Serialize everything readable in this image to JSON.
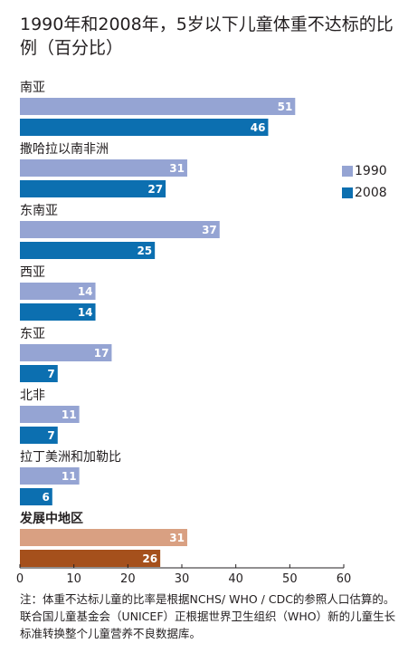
{
  "chart_data": {
    "type": "bar",
    "orientation": "horizontal",
    "title": "1990年和2008年，5岁以下儿童体重不达标的比例（百分比）",
    "categories": [
      "南亚",
      "撒哈拉以南非洲",
      "东南亚",
      "西亚",
      "东亚",
      "北非",
      "拉丁美洲和加勒比",
      "发展中地区"
    ],
    "series": [
      {
        "name": "1990",
        "values": [
          51,
          31,
          37,
          14,
          17,
          11,
          11,
          31
        ]
      },
      {
        "name": "2008",
        "values": [
          46,
          27,
          25,
          14,
          7,
          7,
          6,
          26
        ]
      }
    ],
    "xlim": [
      0,
      60
    ],
    "xticks": [
      0,
      10,
      20,
      30,
      40,
      50,
      60
    ],
    "grid": false,
    "legend_position": "right",
    "colors": {
      "1990": "#95a4d3",
      "2008": "#0c6fb0",
      "1990_highlight": "#d9a082",
      "2008_highlight": "#a5501c"
    },
    "highlight_category": "发展中地区"
  },
  "legend": {
    "label_1990": "1990",
    "label_2008": "2008"
  },
  "note": "注：体重不达标儿童的比率是根据NCHS/ WHO / CDC的参照人口估算的。联合国儿童基金会（UNICEF）正根据世界卫生组织（WHO）新的儿童生长标准转换整个儿童营养不良数据库。"
}
